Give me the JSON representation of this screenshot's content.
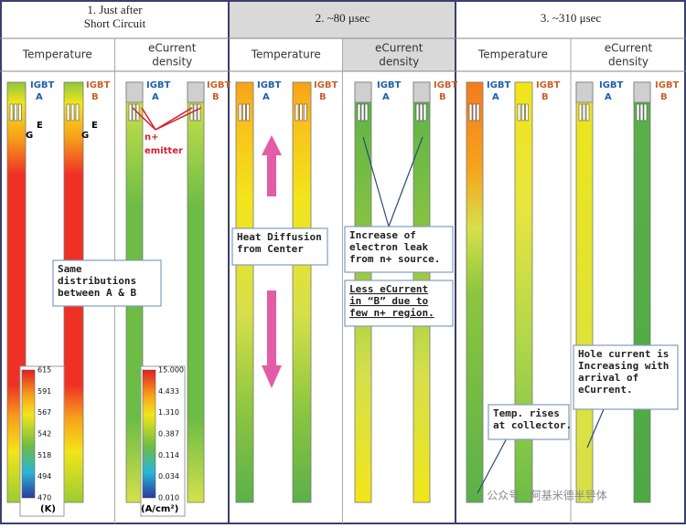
{
  "panels": [
    {
      "title": [
        "1. Just after",
        "Short Circuit"
      ],
      "columns": [
        {
          "header": [
            "Temperature"
          ]
        },
        {
          "header": [
            "eCurrent",
            "density"
          ]
        }
      ]
    },
    {
      "title": [
        "2. ~80 μsec"
      ],
      "columns": [
        {
          "header": [
            "Temperature"
          ]
        },
        {
          "header": [
            "eCurrent",
            "density"
          ]
        }
      ]
    },
    {
      "title": [
        "3. ~310 μsec"
      ],
      "columns": [
        {
          "header": [
            "Temperature"
          ]
        },
        {
          "header": [
            "eCurrent",
            "density"
          ]
        }
      ]
    }
  ],
  "labels": {
    "igbt": "IGBT",
    "a": "A",
    "b": "B",
    "e": "E",
    "g": "G",
    "n_emitter": [
      "n+",
      "emitter"
    ]
  },
  "callouts": [
    {
      "lines": [
        "Same",
        "distributions",
        "between A & B"
      ]
    },
    {
      "lines": [
        "Heat Diffusion",
        "from Center"
      ]
    },
    {
      "lines": [
        "Increase of",
        "electron leak",
        "from n+ source."
      ]
    },
    {
      "lines": [
        "Less  eCurrent",
        "in “B” due to",
        "few n+ region."
      ]
    },
    {
      "lines": [
        "Temp. rises",
        "at collector."
      ]
    },
    {
      "lines": [
        "Hole current is",
        "Increasing with",
        "arrival of",
        "eCurrent."
      ]
    }
  ],
  "temperature_scale": {
    "ticks": [
      "615",
      "591",
      "567",
      "542",
      "518",
      "494",
      "470"
    ],
    "unit": "(K)"
  },
  "current_scale": {
    "ticks": [
      "15.000",
      "4.433",
      "1.310",
      "0.387",
      "0.114",
      "0.034",
      "0.010"
    ],
    "unit": "(A/cm²)"
  },
  "watermark": "公众号 · 阿基米德半导体"
}
